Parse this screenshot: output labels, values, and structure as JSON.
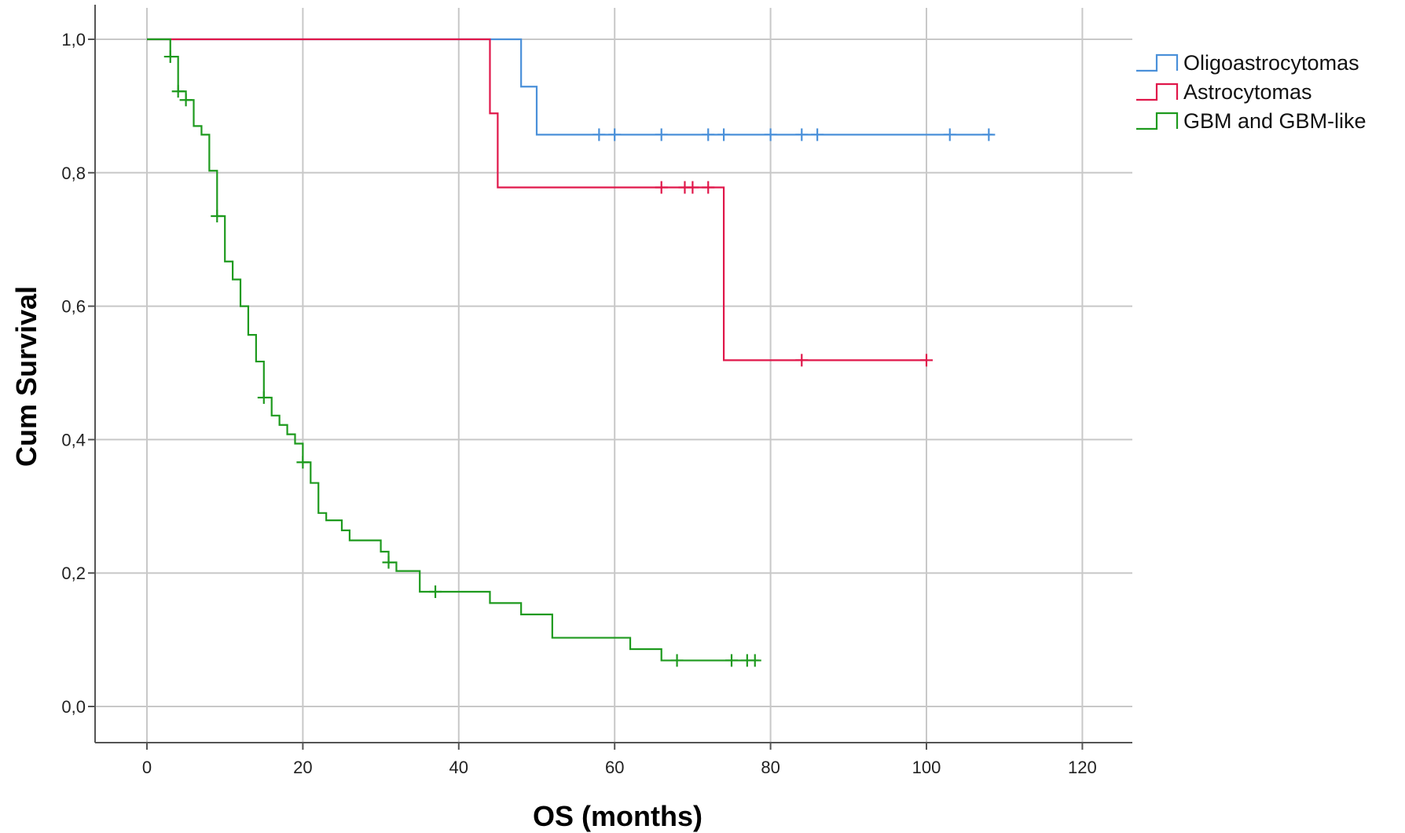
{
  "chart_data": {
    "type": "line",
    "subtype": "kaplan-meier step",
    "xlabel": "OS (months)",
    "ylabel": "Cum Survival",
    "xlim": [
      -7,
      126
    ],
    "ylim": [
      -0.055,
      1.05
    ],
    "x_ticks": [
      0,
      20,
      40,
      60,
      80,
      100,
      120
    ],
    "x_tick_labels": [
      "0",
      "20",
      "40",
      "60",
      "80",
      "100",
      "120"
    ],
    "y_ticks": [
      0,
      0.2,
      0.4,
      0.6,
      0.8,
      1.0
    ],
    "y_tick_labels": [
      "0,0",
      "0,2",
      "0,4",
      "0,6",
      "0,8",
      "1,0"
    ],
    "grid": true,
    "legend_position": "top-right",
    "series": [
      {
        "name": "Oligoastrocytomas",
        "color": "#4a90d9",
        "steps": [
          [
            0,
            1.0
          ],
          [
            48,
            0.929
          ],
          [
            50,
            0.857
          ],
          [
            108.5,
            0.857
          ]
        ],
        "censored": [
          [
            58,
            0.857
          ],
          [
            60,
            0.857
          ],
          [
            66,
            0.857
          ],
          [
            72,
            0.857
          ],
          [
            74,
            0.857
          ],
          [
            80,
            0.857
          ],
          [
            84,
            0.857
          ],
          [
            86,
            0.857
          ],
          [
            103,
            0.857
          ],
          [
            108,
            0.857
          ]
        ]
      },
      {
        "name": "Astrocytomas",
        "color": "#e0174a",
        "steps": [
          [
            0,
            1.0
          ],
          [
            44,
            0.889
          ],
          [
            45,
            0.778
          ],
          [
            74,
            0.519
          ],
          [
            100,
            0.519
          ]
        ],
        "censored": [
          [
            66,
            0.778
          ],
          [
            69,
            0.778
          ],
          [
            70,
            0.778
          ],
          [
            72,
            0.778
          ],
          [
            84,
            0.519
          ],
          [
            100,
            0.519
          ]
        ]
      },
      {
        "name": "GBM and GBM-like",
        "color": "#1e9a1e",
        "steps": [
          [
            0,
            1.0
          ],
          [
            3,
            0.974
          ],
          [
            4,
            0.922
          ],
          [
            5,
            0.909
          ],
          [
            6,
            0.87
          ],
          [
            7,
            0.857
          ],
          [
            8,
            0.803
          ],
          [
            9,
            0.735
          ],
          [
            10,
            0.667
          ],
          [
            11,
            0.64
          ],
          [
            12,
            0.6
          ],
          [
            13,
            0.557
          ],
          [
            14,
            0.517
          ],
          [
            15,
            0.463
          ],
          [
            16,
            0.436
          ],
          [
            17,
            0.422
          ],
          [
            18,
            0.408
          ],
          [
            19,
            0.394
          ],
          [
            20,
            0.366
          ],
          [
            21,
            0.335
          ],
          [
            22,
            0.29
          ],
          [
            23,
            0.279
          ],
          [
            25,
            0.264
          ],
          [
            26,
            0.249
          ],
          [
            30,
            0.232
          ],
          [
            31,
            0.216
          ],
          [
            32,
            0.203
          ],
          [
            35,
            0.172
          ],
          [
            44,
            0.155
          ],
          [
            48,
            0.138
          ],
          [
            52,
            0.103
          ],
          [
            62,
            0.086
          ],
          [
            66,
            0.069
          ],
          [
            78.5,
            0.069
          ]
        ],
        "censored": [
          [
            3,
            0.974
          ],
          [
            4,
            0.922
          ],
          [
            5,
            0.909
          ],
          [
            9,
            0.735
          ],
          [
            15,
            0.463
          ],
          [
            20,
            0.366
          ],
          [
            31,
            0.216
          ],
          [
            37,
            0.172
          ],
          [
            68,
            0.069
          ],
          [
            75,
            0.069
          ],
          [
            77,
            0.069
          ],
          [
            78,
            0.069
          ]
        ]
      }
    ]
  }
}
